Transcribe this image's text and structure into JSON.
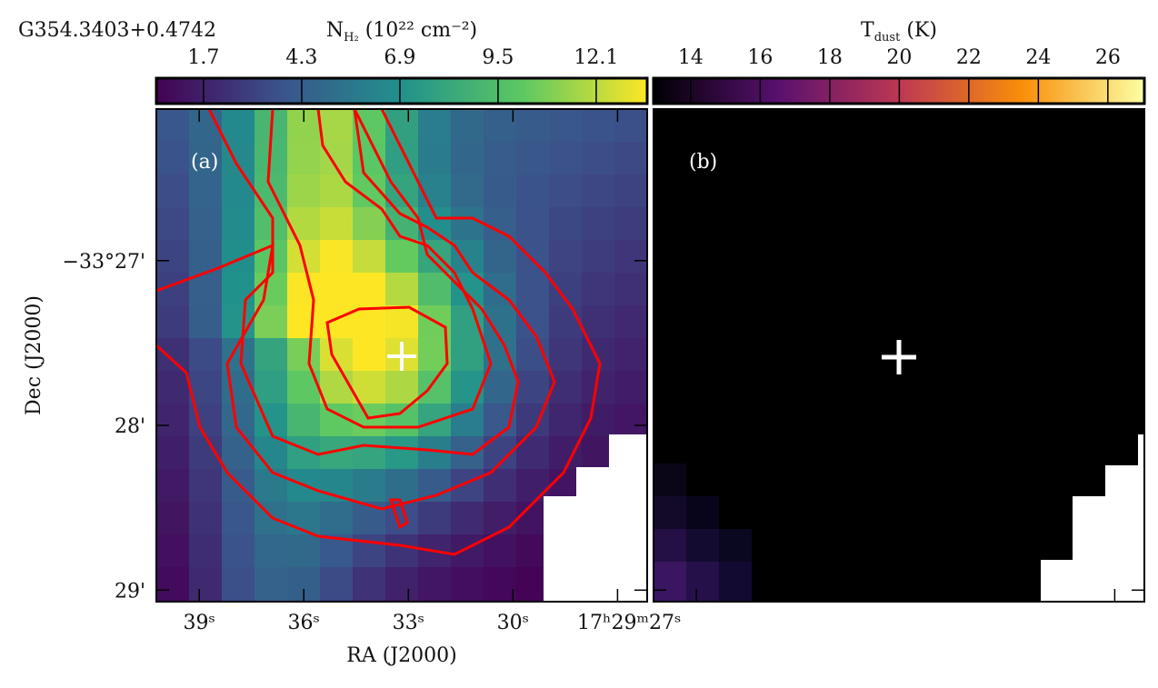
{
  "chart_data": {
    "type": "image",
    "title": "G354.3403+0.4742",
    "panels": [
      {
        "label": "(a)",
        "colorbar": {
          "symbol": "N",
          "subscript": "H₂",
          "unit": " (10²² cm⁻²)",
          "colormap": "viridis",
          "clim": [
            0.45,
            13.45
          ],
          "ticks": [
            1.7,
            4.3,
            6.9,
            9.5,
            12.1
          ]
        },
        "contour_color": "#ff0000"
      },
      {
        "label": "(b)",
        "colorbar": {
          "symbol": "T",
          "subscript": "dust",
          "unit": " (K)",
          "colormap": "inferno",
          "clim": [
            12.93,
            27.05
          ],
          "ticks": [
            14,
            16,
            18,
            20,
            22,
            24,
            26
          ]
        }
      }
    ],
    "x_label": "RA (J2000)",
    "y_label": "Dec (J2000)",
    "xlim": [
      40.23,
      26.15
    ],
    "xticks": [
      {
        "value": 39,
        "label": "39ˢ"
      },
      {
        "value": 36,
        "label": "36ˢ"
      },
      {
        "value": 33,
        "label": "33ˢ"
      },
      {
        "value": 30,
        "label": "30ˢ"
      },
      {
        "value": 27,
        "label": "17ʰ29ᵐ27ˢ"
      }
    ],
    "ylim": [
      26.08,
      29.07
    ],
    "yticks": [
      {
        "value": 27,
        "label": "−33°27'"
      },
      {
        "value": 28,
        "label": "28'"
      },
      {
        "value": 29,
        "label": "29'"
      }
    ]
  }
}
